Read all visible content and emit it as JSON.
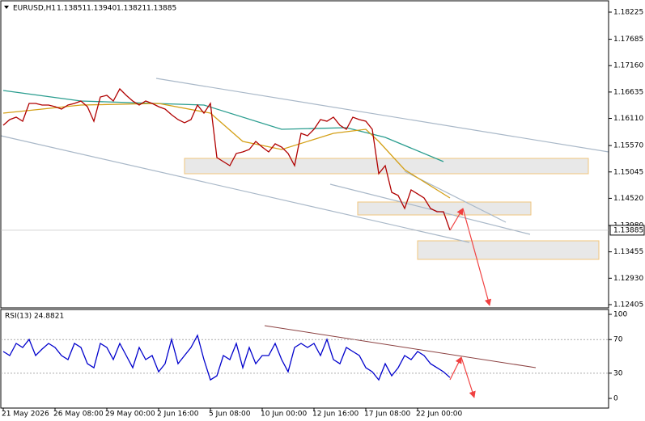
{
  "chart_data": [
    {
      "type": "line",
      "title": "EURUSD,H1",
      "ohlc_text": [
        "1.13851",
        "1.13940",
        "1.13821",
        "1.13885"
      ],
      "categories": [
        "21 May 2026",
        null,
        null,
        null,
        null,
        null,
        null,
        null,
        "26 May 08:00",
        null,
        null,
        null,
        null,
        null,
        null,
        null,
        "29 May 00:00",
        null,
        null,
        null,
        null,
        null,
        null,
        null,
        "2 Jun 16:00",
        null,
        null,
        null,
        null,
        null,
        null,
        null,
        "5 Jun 08:00",
        null,
        null,
        null,
        null,
        null,
        null,
        null,
        "10 Jun 00:00",
        null,
        null,
        null,
        null,
        null,
        null,
        null,
        "12 Jun 16:00",
        null,
        null,
        null,
        null,
        null,
        null,
        null,
        "17 Jun 08:00",
        null,
        null,
        null,
        null,
        null,
        null,
        null,
        "22 Jun 00:00",
        null,
        null,
        null,
        null,
        null
      ],
      "series": [
        {
          "color": "#b00000",
          "values": [
            1.15974,
            1.16087,
            1.16135,
            1.16055,
            1.16408,
            1.16408,
            1.16376,
            1.16376,
            1.16344,
            1.16296,
            1.16376,
            1.16408,
            1.16457,
            1.16344,
            1.16055,
            1.16537,
            1.16569,
            1.16457,
            1.16698,
            1.16569,
            1.16457,
            1.16376,
            1.16457,
            1.16408,
            1.16344,
            1.16296,
            1.16183,
            1.16087,
            1.16023,
            1.16087,
            1.16376,
            1.16215,
            1.16408,
            1.15331,
            1.15251,
            1.1517,
            1.15412,
            1.15444,
            1.15492,
            1.15653,
            1.1554,
            1.15444,
            1.15604,
            1.1554,
            1.15412,
            1.1517,
            1.15813,
            1.15765,
            1.15894,
            1.16087,
            1.16055,
            1.16135,
            1.15974,
            1.15894,
            1.16135,
            1.16087,
            1.16055,
            1.15894,
            1.1501,
            1.1517,
            1.1464,
            1.14576,
            1.14318,
            1.14688,
            1.14608,
            1.14527,
            1.14318,
            1.14254,
            1.14254,
            1.13885
          ]
        }
      ],
      "overlays": [
        {
          "color": "#2a9d8f",
          "x": [
            0,
            12,
            31,
            43,
            53,
            59,
            68
          ],
          "values": [
            1.16666,
            1.16457,
            1.16376,
            1.15894,
            1.15926,
            1.15733,
            1.15251
          ]
        },
        {
          "color": "#d4a017",
          "x": [
            0,
            12,
            24,
            32,
            37,
            43,
            51,
            56,
            58,
            62,
            69
          ],
          "values": [
            1.16215,
            1.16376,
            1.16408,
            1.16215,
            1.15653,
            1.15492,
            1.15813,
            1.15894,
            1.15653,
            1.1509,
            1.14527
          ]
        }
      ],
      "last_price": 1.13885,
      "ylim": [
        1.1234,
        1.1845
      ],
      "yticks": [
        1.18225,
        1.17685,
        {
          "value": 1.1716,
          "label": "1.17160"
        },
        1.16635,
        {
          "value": 1.1611,
          "label": "1.16110"
        },
        {
          "value": 1.1557,
          "label": "1.15570"
        },
        1.15045,
        {
          "value": 1.1452,
          "label": "1.14520"
        },
        {
          "value": 1.1398,
          "label": "1.13980"
        },
        1.13455,
        {
          "value": 1.1293,
          "label": "1.12930"
        },
        1.12405
      ]
    },
    {
      "type": "line",
      "title": "RSI(13) 24.8821",
      "series": [
        {
          "color": "#0000cc",
          "values": [
            55.8,
            51,
            65.4,
            60.6,
            70.2,
            51,
            58.7,
            65.4,
            60.6,
            51,
            46.2,
            65.4,
            60.6,
            41.3,
            36.5,
            65.4,
            60.6,
            46.2,
            65.4,
            51,
            36.5,
            60.6,
            46.2,
            51,
            31.7,
            41.3,
            70.2,
            41.3,
            51,
            60.6,
            75,
            46.2,
            22.1,
            26.9,
            51,
            46.2,
            65.4,
            36.5,
            60.6,
            41.3,
            51,
            51,
            65.4,
            46.2,
            31.7,
            60.6,
            65.4,
            60.6,
            65.4,
            51,
            70.2,
            46.2,
            41.3,
            60.6,
            55.8,
            51,
            36.5,
            31.7,
            22.1,
            41.3,
            26.9,
            36.5,
            51,
            46.2,
            55.8,
            51,
            41.3,
            36.5,
            31.7,
            24.88
          ]
        }
      ],
      "levels": [
        30,
        70
      ],
      "ylim": [
        -11.5,
        105.8
      ],
      "yticks": [
        0,
        30,
        70,
        100
      ]
    }
  ]
}
